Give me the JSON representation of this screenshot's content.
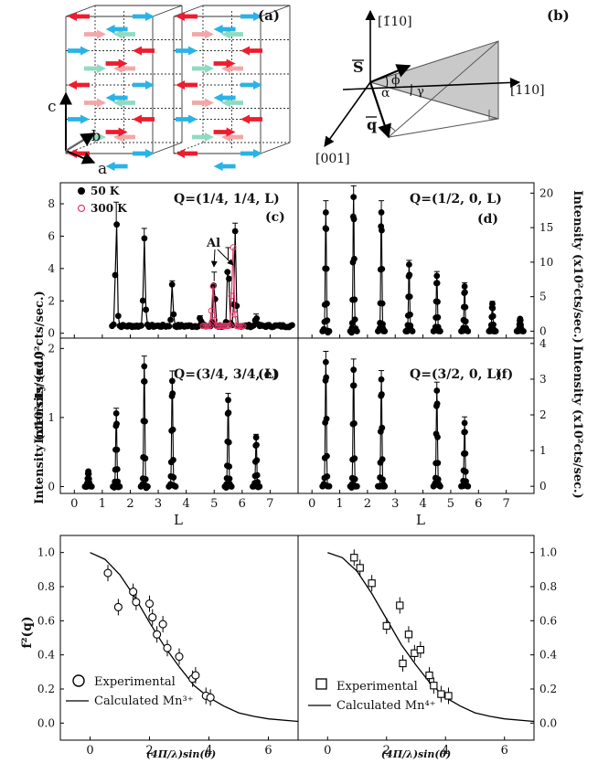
{
  "colors": {
    "black": "#000000",
    "red": "#ee1c2e",
    "blue": "#2ab3e6",
    "pink": "#f3a7a7",
    "green": "#8fdcc0",
    "mag": "#e8386b",
    "grey": "#c7c7c7"
  },
  "panel_a": {
    "label": "(a)",
    "axis_c": "c",
    "axis_b": "b",
    "axis_a": "a"
  },
  "panel_b": {
    "label": "(b)",
    "dir_m110": "[1̄10]",
    "dir_110": "[110]",
    "dir_001": "[001]",
    "vec_S": "S",
    "vec_q": "q",
    "ang_phi": "ϕ",
    "ang_alpha": "α",
    "ang_gamma": "γ"
  },
  "chart_data": [
    {
      "id": "c",
      "type": "scatter",
      "label": "(c)",
      "title": "Q=(1/4, 1/4, L)",
      "ylabel": "Intensity (x10²cts/sec.)",
      "xlabel": "L",
      "xlim": [
        -0.5,
        8
      ],
      "ylim": [
        -0.3,
        9.3
      ],
      "yticks": [
        0,
        2,
        4,
        6,
        8
      ],
      "xticks": [
        0,
        1,
        2,
        3,
        4,
        5,
        6,
        7
      ],
      "legend": [
        {
          "name": "50 K",
          "marker": "filled-circle"
        },
        {
          "name": "300 K",
          "marker": "open-circle"
        }
      ],
      "annotation": "Al",
      "baseline": 0.45,
      "series": [
        {
          "name": "50 K",
          "peaks": [
            [
              1.5,
              7.5
            ],
            [
              2.5,
              6.0
            ],
            [
              3.5,
              3.0
            ],
            [
              4.5,
              1.0
            ],
            [
              5.0,
              3.5
            ],
            [
              5.5,
              4.9
            ],
            [
              5.75,
              6.3
            ],
            [
              6.5,
              1.1
            ]
          ],
          "range": [
            1.35,
            7.8
          ]
        },
        {
          "name": "300 K",
          "peaks": [
            [
              4.95,
              3.0
            ],
            [
              5.67,
              5.5
            ]
          ],
          "range": [
            4.6,
            6.05
          ]
        }
      ]
    },
    {
      "id": "d",
      "type": "scatter",
      "label": "(d)",
      "title": "Q=(1/2, 0, L)",
      "ylabel": "Intensity (x10²cts/sec.)",
      "xlabel": "L",
      "xlim": [
        -0.5,
        8
      ],
      "ylim": [
        -1,
        21.5
      ],
      "yticks": [
        0,
        5,
        10,
        15,
        20
      ],
      "xticks": [
        0,
        1,
        2,
        3,
        4,
        5,
        6,
        7
      ],
      "y_axis_side": "right",
      "series": [
        {
          "name": "50 K",
          "peaks": [
            [
              0.5,
              17.5
            ],
            [
              1.5,
              19.5
            ],
            [
              2.5,
              17.5
            ],
            [
              3.5,
              9.5
            ],
            [
              4.5,
              8.0
            ],
            [
              5.5,
              6.5
            ],
            [
              6.5,
              4.0
            ],
            [
              7.5,
              1.8
            ]
          ]
        }
      ]
    },
    {
      "id": "e",
      "type": "scatter",
      "label": "(e)",
      "title": "Q=(3/4, 3/4, L)",
      "ylabel": "Intensity (x10²cts/sec.)",
      "xlabel": "L",
      "xlim": [
        -0.5,
        8
      ],
      "ylim": [
        -0.1,
        2.15
      ],
      "yticks": [
        0,
        1,
        2
      ],
      "xticks": [
        0,
        1,
        2,
        3,
        4,
        5,
        6,
        7
      ],
      "series": [
        {
          "name": "50 K",
          "peaks": [
            [
              0.5,
              0.22
            ],
            [
              1.5,
              1.05
            ],
            [
              2.5,
              1.75
            ],
            [
              3.5,
              1.55
            ],
            [
              5.5,
              1.25
            ],
            [
              6.5,
              0.7
            ]
          ]
        }
      ]
    },
    {
      "id": "f",
      "type": "scatter",
      "label": "(f)",
      "title": "Q=(3/2, 0, L)",
      "ylabel": "Intensity (x10²cts/sec.)",
      "xlabel": "L",
      "xlim": [
        -0.5,
        8
      ],
      "ylim": [
        -0.2,
        4.15
      ],
      "yticks": [
        0,
        1,
        2,
        3,
        4
      ],
      "xticks": [
        0,
        1,
        2,
        3,
        4,
        5,
        6,
        7
      ],
      "y_axis_side": "right",
      "series": [
        {
          "name": "50 K",
          "peaks": [
            [
              0.5,
              3.5
            ],
            [
              1.5,
              3.3
            ],
            [
              2.5,
              3.0
            ],
            [
              4.5,
              2.7
            ],
            [
              5.5,
              1.8
            ]
          ]
        }
      ]
    },
    {
      "id": "g",
      "type": "scatter",
      "ylabel": "f²(q)",
      "xlabel": "(4Π/λ)sin(θ)",
      "xlim": [
        -1,
        7
      ],
      "ylim": [
        -0.1,
        1.1
      ],
      "yticks": [
        0.0,
        0.2,
        0.4,
        0.6,
        0.8,
        1.0
      ],
      "xticks": [
        0,
        2,
        4,
        6
      ],
      "legend": [
        {
          "name": "Experimental",
          "marker": "open-circle"
        },
        {
          "name": "Calculated Mn³⁺",
          "marker": "line"
        }
      ],
      "series": [
        {
          "name": "Experimental",
          "x": [
            0.6,
            0.95,
            1.45,
            1.55,
            2.0,
            2.1,
            2.25,
            2.45,
            2.6,
            3.0,
            3.45,
            3.55,
            3.9,
            4.05
          ],
          "y": [
            0.88,
            0.68,
            0.77,
            0.71,
            0.7,
            0.62,
            0.52,
            0.58,
            0.44,
            0.39,
            0.26,
            0.28,
            0.16,
            0.15
          ]
        },
        {
          "name": "Calculated Mn³⁺",
          "type": "line",
          "x": [
            0,
            0.5,
            1,
            1.5,
            2,
            2.5,
            3,
            3.5,
            4,
            4.5,
            5,
            5.5,
            6,
            7
          ],
          "y": [
            1.0,
            0.96,
            0.87,
            0.74,
            0.59,
            0.45,
            0.33,
            0.22,
            0.15,
            0.1,
            0.06,
            0.04,
            0.025,
            0.01
          ]
        }
      ]
    },
    {
      "id": "h",
      "type": "scatter",
      "xlim": [
        -1,
        7
      ],
      "ylim": [
        -0.1,
        1.1
      ],
      "yticks": [
        0.0,
        0.2,
        0.4,
        0.6,
        0.8,
        1.0
      ],
      "xticks": [
        0,
        2,
        4,
        6
      ],
      "y_axis_side": "right",
      "legend": [
        {
          "name": "Experimental",
          "marker": "open-square"
        },
        {
          "name": "Calculated Mn⁴⁺",
          "marker": "line"
        }
      ],
      "series": [
        {
          "name": "Experimental",
          "x": [
            0.9,
            1.1,
            1.5,
            2.0,
            2.45,
            2.55,
            2.75,
            2.95,
            3.15,
            3.45,
            3.6,
            3.85,
            4.1
          ],
          "y": [
            0.97,
            0.91,
            0.82,
            0.57,
            0.69,
            0.35,
            0.52,
            0.41,
            0.43,
            0.28,
            0.22,
            0.17,
            0.16
          ]
        },
        {
          "name": "Calculated Mn⁴⁺",
          "type": "line",
          "x": [
            0,
            0.5,
            1,
            1.5,
            2,
            2.5,
            3,
            3.5,
            4,
            4.5,
            5,
            5.5,
            6,
            7
          ],
          "y": [
            1.0,
            0.97,
            0.89,
            0.76,
            0.61,
            0.46,
            0.34,
            0.23,
            0.15,
            0.1,
            0.06,
            0.04,
            0.025,
            0.01
          ]
        }
      ]
    }
  ]
}
